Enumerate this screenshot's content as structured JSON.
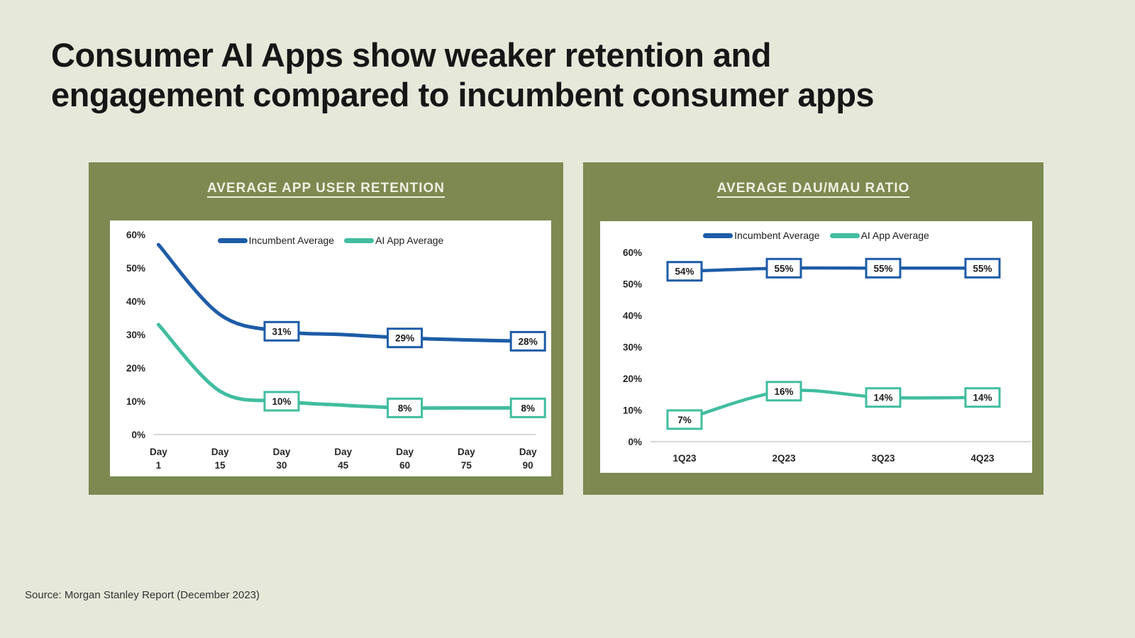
{
  "page": {
    "title_lines": [
      "Consumer AI Apps show weaker retention and",
      "engagement compared to incumbent consumer apps"
    ],
    "source": "Source: Morgan Stanley Report (December 2023)",
    "colors": {
      "background": "#e6e8da",
      "panel": "#7d8951",
      "incumbent_blue": "#1d5ca7",
      "ai_teal": "#41bd9f",
      "chart_bg": "#ffffff",
      "axis_line": "#c9cbc9",
      "chart_title_text": "#f1efe2",
      "title_text": "#161616"
    }
  },
  "chart_data": [
    {
      "type": "line",
      "title": "AVERAGE APP USER RETENTION",
      "categories": [
        "Day 1",
        "Day 15",
        "Day 30",
        "Day 45",
        "Day 60",
        "Day 75",
        "Day 90"
      ],
      "x_label_two_line": true,
      "ylim": [
        0,
        60
      ],
      "ytick_step": 10,
      "ytick_suffix": "%",
      "grid": false,
      "legend_position": "top-center",
      "series": [
        {
          "name": "Incumbent Average",
          "color": "#1d5ca7",
          "values": [
            57,
            36,
            31,
            30,
            29,
            28.4,
            28
          ],
          "point_labels": {
            "2": "31%",
            "4": "29%",
            "6": "28%"
          }
        },
        {
          "name": "AI App Average",
          "color": "#41bd9f",
          "values": [
            33,
            13,
            10,
            8.8,
            8,
            8,
            8
          ],
          "point_labels": {
            "2": "10%",
            "4": "8%",
            "6": "8%"
          }
        }
      ]
    },
    {
      "type": "line",
      "title": "AVERAGE DAU/MAU RATIO",
      "categories": [
        "1Q23",
        "2Q23",
        "3Q23",
        "4Q23"
      ],
      "x_label_two_line": false,
      "ylim": [
        0,
        60
      ],
      "ytick_step": 10,
      "ytick_suffix": "%",
      "grid": false,
      "legend_position": "top-center",
      "series": [
        {
          "name": "Incumbent Average",
          "color": "#1d5ca7",
          "values": [
            54,
            55,
            55,
            55
          ],
          "point_labels": {
            "0": "54%",
            "1": "55%",
            "2": "55%",
            "3": "55%"
          }
        },
        {
          "name": "AI App Average",
          "color": "#41bd9f",
          "values": [
            7,
            16,
            14,
            14
          ],
          "point_labels": {
            "0": "7%",
            "1": "16%",
            "2": "14%",
            "3": "14%"
          }
        }
      ]
    }
  ]
}
